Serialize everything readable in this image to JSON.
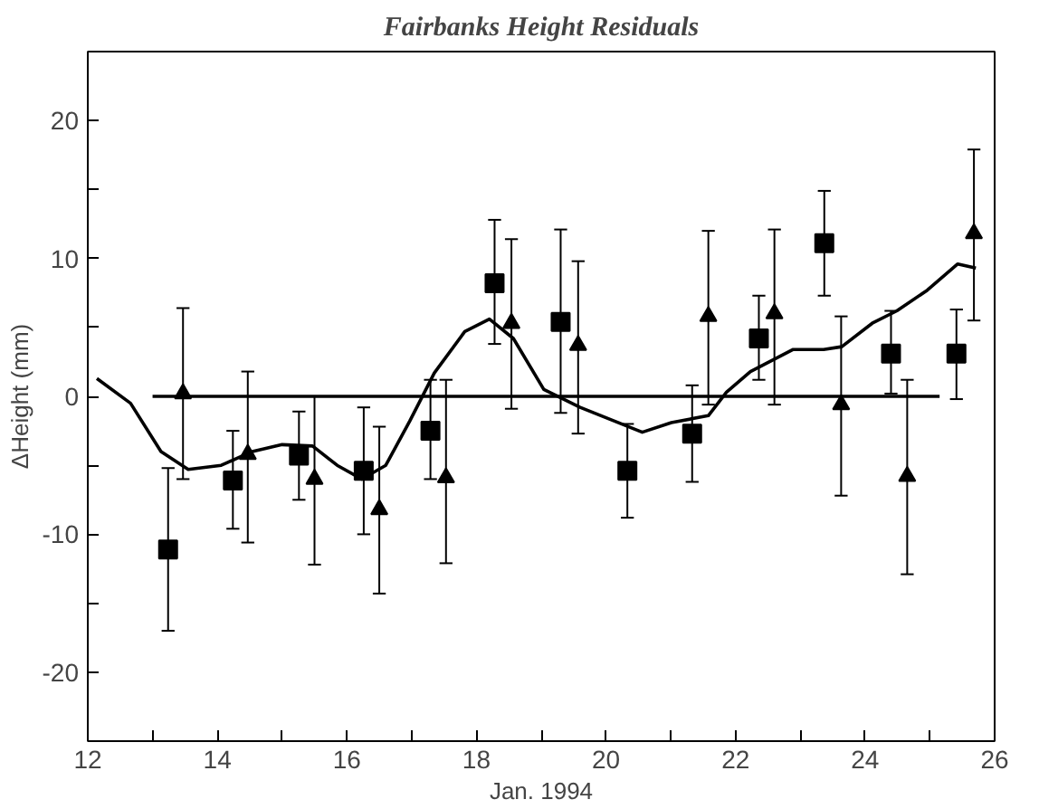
{
  "chart_data": {
    "type": "scatter",
    "title": "Fairbanks Height Residuals",
    "xlabel": "Jan. 1994",
    "ylabel": "ΔHeight (mm)",
    "xlim": [
      12,
      26
    ],
    "ylim": [
      -25,
      25
    ],
    "xticks": [
      12,
      {
        "value": 13,
        "label": null
      },
      14,
      {
        "value": 15,
        "label": null
      },
      16,
      {
        "value": 17,
        "label": null
      },
      18,
      {
        "value": 19,
        "label": null
      },
      20,
      {
        "value": 21,
        "label": null
      },
      22,
      {
        "value": 23,
        "label": null
      },
      24,
      {
        "value": 25,
        "label": null
      },
      26
    ],
    "yticks": [
      {
        "value": -25,
        "label": null
      },
      -20,
      {
        "value": -15,
        "label": null
      },
      -10,
      {
        "value": -5,
        "label": null
      },
      0,
      {
        "value": 5,
        "label": null
      },
      10,
      {
        "value": 15,
        "label": null
      },
      20,
      {
        "value": 25,
        "label": null
      }
    ],
    "grid": false,
    "series": [
      {
        "marker": "square",
        "color": "#000000",
        "x": [
          13.24,
          14.24,
          15.26,
          16.26,
          17.29,
          18.28,
          19.3,
          20.33,
          21.33,
          22.36,
          23.37,
          24.4,
          25.41
        ],
        "values": [
          -11.1,
          -6.1,
          -4.3,
          -5.4,
          -2.5,
          8.2,
          5.4,
          -5.4,
          -2.7,
          4.2,
          11.1,
          3.1,
          3.1
        ],
        "errors": [
          [
            -17.0,
            -5.2
          ],
          [
            -9.6,
            -2.5
          ],
          [
            -7.5,
            -1.1
          ],
          [
            -10.0,
            -0.8
          ],
          [
            -6.0,
            1.2
          ],
          [
            3.8,
            12.8
          ],
          [
            -1.2,
            12.1
          ],
          [
            -8.8,
            -2.0
          ],
          [
            -6.2,
            0.8
          ],
          [
            1.2,
            7.3
          ],
          [
            7.3,
            14.9
          ],
          [
            0.2,
            6.2
          ],
          [
            -0.2,
            6.3
          ]
        ]
      },
      {
        "marker": "triangle",
        "color": "#000000",
        "x": [
          13.47,
          14.47,
          15.5,
          16.5,
          17.53,
          18.54,
          19.57,
          21.58,
          22.6,
          23.63,
          24.65,
          25.68
        ],
        "values": [
          0.2,
          -4.2,
          -6.0,
          -8.2,
          -5.9,
          5.3,
          3.7,
          5.8,
          6.0,
          -0.6,
          -5.8,
          11.8
        ],
        "errors": [
          [
            -6.0,
            6.4
          ],
          [
            -10.6,
            1.8
          ],
          [
            -12.2,
            0.0
          ],
          [
            -14.3,
            -2.2
          ],
          [
            -12.1,
            1.2
          ],
          [
            -0.9,
            11.4
          ],
          [
            -2.7,
            9.8
          ],
          [
            -0.6,
            12.0
          ],
          [
            -0.6,
            12.1
          ],
          [
            -7.2,
            5.8
          ],
          [
            -12.9,
            1.2
          ],
          [
            5.5,
            17.9
          ]
        ]
      },
      {
        "type": "line",
        "marker": "none",
        "line_style": "solid",
        "color": "#000000",
        "x": [
          13.0,
          25.15
        ],
        "values": [
          0,
          0
        ]
      },
      {
        "type": "line",
        "marker": "none",
        "line_style": "solid",
        "color": "#000000",
        "x": [
          12.14,
          12.66,
          13.13,
          13.55,
          14.06,
          14.54,
          15.0,
          15.47,
          15.85,
          16.23,
          16.6,
          16.97,
          17.35,
          17.82,
          18.2,
          18.57,
          19.04,
          19.6,
          20.56,
          21.01,
          21.58,
          21.86,
          22.23,
          22.89,
          23.36,
          23.64,
          24.11,
          24.49,
          24.96,
          25.43,
          25.71
        ],
        "values": [
          1.3,
          -0.5,
          -4.0,
          -5.3,
          -5.0,
          -4.0,
          -3.5,
          -3.6,
          -5.0,
          -6.0,
          -5.0,
          -1.8,
          1.7,
          4.7,
          5.6,
          4.2,
          0.5,
          -0.8,
          -2.6,
          -1.9,
          -1.4,
          0.3,
          1.8,
          3.4,
          3.4,
          3.6,
          5.3,
          6.2,
          7.7,
          9.6,
          9.3
        ]
      }
    ]
  }
}
